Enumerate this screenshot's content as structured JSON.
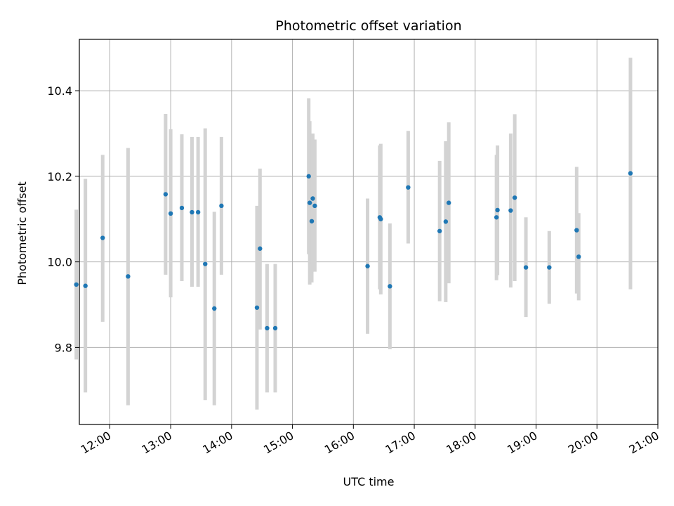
{
  "chart_data": {
    "type": "scatter",
    "title": "Photometric offset variation",
    "xlabel": "UTC time",
    "ylabel": "Photometric offset",
    "x_tick_labels": [
      "12:00",
      "13:00",
      "14:00",
      "15:00",
      "16:00",
      "17:00",
      "18:00",
      "19:00",
      "20:00",
      "21:00"
    ],
    "y_tick_labels": [
      "9.8",
      "10.0",
      "10.2",
      "10.4"
    ],
    "xlim": [
      "11:30",
      "21:00"
    ],
    "ylim": [
      9.62,
      10.52
    ],
    "grid": true,
    "marker_color": "#1f77b4",
    "errorbar_color": "#d3d3d3",
    "series": [
      {
        "points": [
          {
            "x": "11:27",
            "y": 9.947,
            "ylo": 9.772,
            "yhi": 10.122
          },
          {
            "x": "11:36",
            "y": 9.944,
            "ylo": 9.695,
            "yhi": 10.194
          },
          {
            "x": "11:53",
            "y": 10.056,
            "ylo": 9.86,
            "yhi": 10.25
          },
          {
            "x": "12:18",
            "y": 9.966,
            "ylo": 9.665,
            "yhi": 10.266
          },
          {
            "x": "12:55",
            "y": 10.158,
            "ylo": 9.97,
            "yhi": 10.346
          },
          {
            "x": "13:00",
            "y": 10.113,
            "ylo": 9.917,
            "yhi": 10.31
          },
          {
            "x": "13:11",
            "y": 10.126,
            "ylo": 9.955,
            "yhi": 10.298
          },
          {
            "x": "13:21",
            "y": 10.116,
            "ylo": 9.942,
            "yhi": 10.292
          },
          {
            "x": "13:27",
            "y": 10.116,
            "ylo": 9.942,
            "yhi": 10.292
          },
          {
            "x": "13:34",
            "y": 9.995,
            "ylo": 9.677,
            "yhi": 10.312
          },
          {
            "x": "13:43",
            "y": 9.891,
            "ylo": 9.665,
            "yhi": 10.117
          },
          {
            "x": "13:50",
            "y": 10.131,
            "ylo": 9.97,
            "yhi": 10.292
          },
          {
            "x": "14:25",
            "y": 9.893,
            "ylo": 9.655,
            "yhi": 10.131
          },
          {
            "x": "14:28",
            "y": 10.031,
            "ylo": 9.842,
            "yhi": 10.218
          },
          {
            "x": "14:35",
            "y": 9.845,
            "ylo": 9.695,
            "yhi": 9.995
          },
          {
            "x": "14:43",
            "y": 9.845,
            "ylo": 9.695,
            "yhi": 9.995
          },
          {
            "x": "15:16",
            "y": 10.2,
            "ylo": 10.018,
            "yhi": 10.382
          },
          {
            "x": "15:17",
            "y": 10.138,
            "ylo": 9.947,
            "yhi": 10.329
          },
          {
            "x": "15:19",
            "y": 10.095,
            "ylo": 9.952,
            "yhi": 10.238
          },
          {
            "x": "15:20",
            "y": 10.148,
            "ylo": 9.996,
            "yhi": 10.3
          },
          {
            "x": "15:22",
            "y": 10.131,
            "ylo": 9.977,
            "yhi": 10.286
          },
          {
            "x": "16:14",
            "y": 9.99,
            "ylo": 9.832,
            "yhi": 10.148
          },
          {
            "x": "16:26",
            "y": 10.104,
            "ylo": 9.936,
            "yhi": 10.272
          },
          {
            "x": "16:27",
            "y": 10.1,
            "ylo": 9.924,
            "yhi": 10.276
          },
          {
            "x": "16:36",
            "y": 9.943,
            "ylo": 9.796,
            "yhi": 10.09
          },
          {
            "x": "16:54",
            "y": 10.174,
            "ylo": 10.043,
            "yhi": 10.306
          },
          {
            "x": "17:25",
            "y": 10.072,
            "ylo": 9.908,
            "yhi": 10.236
          },
          {
            "x": "17:31",
            "y": 10.094,
            "ylo": 9.906,
            "yhi": 10.282
          },
          {
            "x": "17:34",
            "y": 10.138,
            "ylo": 9.95,
            "yhi": 10.326
          },
          {
            "x": "18:21",
            "y": 10.104,
            "ylo": 9.957,
            "yhi": 10.25
          },
          {
            "x": "18:22",
            "y": 10.121,
            "ylo": 9.969,
            "yhi": 10.272
          },
          {
            "x": "18:35",
            "y": 10.12,
            "ylo": 9.94,
            "yhi": 10.3
          },
          {
            "x": "18:39",
            "y": 10.15,
            "ylo": 9.955,
            "yhi": 10.345
          },
          {
            "x": "18:50",
            "y": 9.987,
            "ylo": 9.871,
            "yhi": 10.104
          },
          {
            "x": "19:13",
            "y": 9.987,
            "ylo": 9.902,
            "yhi": 10.072
          },
          {
            "x": "19:40",
            "y": 10.074,
            "ylo": 9.926,
            "yhi": 10.222
          },
          {
            "x": "19:42",
            "y": 10.012,
            "ylo": 9.91,
            "yhi": 10.114
          },
          {
            "x": "20:33",
            "y": 10.207,
            "ylo": 9.936,
            "yhi": 10.477
          }
        ]
      }
    ]
  }
}
